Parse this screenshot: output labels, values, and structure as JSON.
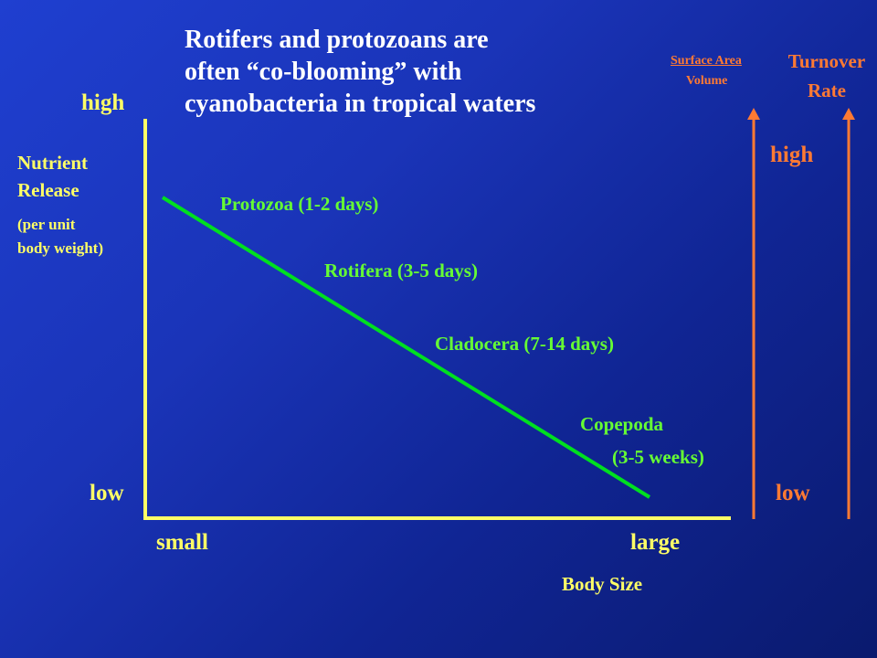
{
  "title_lines": [
    "Rotifers and protozoans are",
    "often “co-blooming” with",
    "cyanobacteria in tropical waters"
  ],
  "left_axis": {
    "high_label": "high",
    "low_label": "low",
    "label_lines": [
      "Nutrient",
      "Release",
      "(per unit",
      "body weight)"
    ]
  },
  "x_axis": {
    "small_label": "small",
    "large_label": "large",
    "title": "Body Size"
  },
  "right_axes": {
    "ratio_numerator": "Surface Area",
    "ratio_denominator": "Volume",
    "turnover_lines": [
      "Turnover",
      "Rate"
    ],
    "high_label": "high",
    "low_label": "low"
  },
  "line_labels": {
    "protozoa": "Protozoa (1-2 days)",
    "rotifera": "Rotifera (3-5 days)",
    "cladocera": "Cladocera (7-14 days)",
    "copepoda_line1": "Copepoda",
    "copepoda_line2": "(3-5 weeks)"
  },
  "colors": {
    "title": "#ffffff",
    "axis": "#ffff66",
    "trend_line": "#00e020",
    "labels": "#66ff33",
    "right_arrows": "#ff7a33"
  }
}
